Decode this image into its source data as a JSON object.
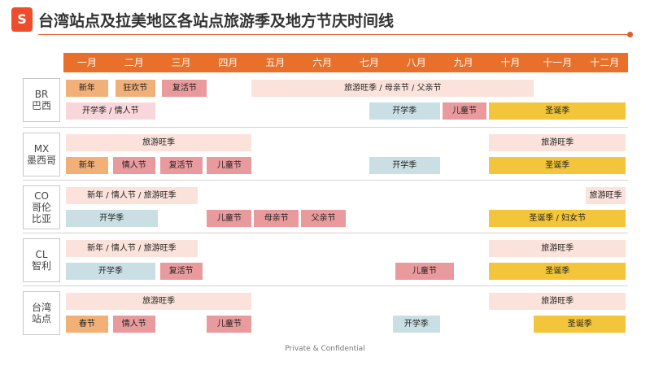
{
  "title": "台湾站点及拉美地区各站点旅游季及地方节庆时间线",
  "logo_glyph": "S",
  "months": [
    "一月",
    "二月",
    "三月",
    "四月",
    "五月",
    "六月",
    "七月",
    "八月",
    "九月",
    "十月",
    "十一月",
    "十二月"
  ],
  "regions": [
    {
      "code": "BR",
      "name_lines": [
        "巴西"
      ],
      "bars": [
        {
          "label": "新年",
          "color": "orange",
          "start": 0.05,
          "end": 0.95,
          "row": 0
        },
        {
          "label": "狂欢节",
          "color": "orange",
          "start": 1.1,
          "end": 1.95,
          "row": 0
        },
        {
          "label": "复活节",
          "color": "red",
          "start": 2.1,
          "end": 3.05,
          "row": 0
        },
        {
          "label": "旅游旺季 / 母亲节 / 父亲节",
          "color": "peach",
          "start": 4.0,
          "end": 10.0,
          "row": 0
        },
        {
          "label": "开学季 / 情人节",
          "color": "pink",
          "start": 0.05,
          "end": 1.95,
          "row": 1
        },
        {
          "label": "开学季",
          "color": "teal",
          "start": 6.5,
          "end": 8.0,
          "row": 1
        },
        {
          "label": "儿童节",
          "color": "red",
          "start": 8.05,
          "end": 9.0,
          "row": 1
        },
        {
          "label": "圣诞季",
          "color": "yellow",
          "start": 9.05,
          "end": 11.95,
          "row": 1
        }
      ]
    },
    {
      "code": "MX",
      "name_lines": [
        "墨西哥"
      ],
      "bars": [
        {
          "label": "旅游旺季",
          "color": "peach",
          "start": 0.05,
          "end": 4.0,
          "row": 0
        },
        {
          "label": "旅游旺季",
          "color": "peach",
          "start": 9.05,
          "end": 11.95,
          "row": 0
        },
        {
          "label": "新年",
          "color": "orange",
          "start": 0.05,
          "end": 0.95,
          "row": 1
        },
        {
          "label": "情人节",
          "color": "red",
          "start": 1.05,
          "end": 1.95,
          "row": 1
        },
        {
          "label": "复活节",
          "color": "red",
          "start": 2.05,
          "end": 2.95,
          "row": 1
        },
        {
          "label": "儿童节",
          "color": "red",
          "start": 3.05,
          "end": 4.0,
          "row": 1
        },
        {
          "label": "开学季",
          "color": "teal",
          "start": 6.5,
          "end": 8.0,
          "row": 1
        },
        {
          "label": "圣诞季",
          "color": "yellow",
          "start": 9.05,
          "end": 11.95,
          "row": 1
        }
      ]
    },
    {
      "code": "CO",
      "name_lines": [
        "哥伦",
        "比亚"
      ],
      "bars": [
        {
          "label": "新年 / 情人节 / 旅游旺季",
          "color": "peach",
          "start": 0.05,
          "end": 2.85,
          "row": 0
        },
        {
          "label": "旅游旺季",
          "color": "peach",
          "start": 11.1,
          "end": 11.95,
          "row": 0
        },
        {
          "label": "开学季",
          "color": "teal",
          "start": 0.05,
          "end": 2.0,
          "row": 1
        },
        {
          "label": "儿童节",
          "color": "red",
          "start": 3.05,
          "end": 4.0,
          "row": 1
        },
        {
          "label": "母亲节",
          "color": "red",
          "start": 4.05,
          "end": 5.0,
          "row": 1
        },
        {
          "label": "父亲节",
          "color": "red",
          "start": 5.05,
          "end": 6.0,
          "row": 1
        },
        {
          "label": "圣诞季 / 妇女节",
          "color": "yellow",
          "start": 9.05,
          "end": 11.95,
          "row": 1
        }
      ]
    },
    {
      "code": "CL",
      "name_lines": [
        "智利"
      ],
      "bars": [
        {
          "label": "新年 / 情人节 / 旅游旺季",
          "color": "peach",
          "start": 0.05,
          "end": 2.85,
          "row": 0
        },
        {
          "label": "旅游旺季",
          "color": "peach",
          "start": 9.05,
          "end": 11.95,
          "row": 0
        },
        {
          "label": "开学季",
          "color": "teal",
          "start": 0.05,
          "end": 1.95,
          "row": 1
        },
        {
          "label": "复活节",
          "color": "red",
          "start": 2.05,
          "end": 2.95,
          "row": 1
        },
        {
          "label": "儿童节",
          "color": "red",
          "start": 7.05,
          "end": 8.3,
          "row": 1
        },
        {
          "label": "圣诞季",
          "color": "yellow",
          "start": 9.05,
          "end": 11.95,
          "row": 1
        }
      ]
    },
    {
      "code": "",
      "name_lines": [
        "台湾",
        "站点"
      ],
      "bars": [
        {
          "label": "旅游旺季",
          "color": "peach",
          "start": 0.05,
          "end": 4.0,
          "row": 0
        },
        {
          "label": "旅游旺季",
          "color": "peach",
          "start": 9.05,
          "end": 11.95,
          "row": 0
        },
        {
          "label": "春节",
          "color": "orange",
          "start": 0.05,
          "end": 0.95,
          "row": 1
        },
        {
          "label": "情人节",
          "color": "red",
          "start": 1.05,
          "end": 1.95,
          "row": 1
        },
        {
          "label": "儿童节",
          "color": "red",
          "start": 3.05,
          "end": 4.0,
          "row": 1
        },
        {
          "label": "开学季",
          "color": "teal",
          "start": 7.0,
          "end": 8.0,
          "row": 1
        },
        {
          "label": "圣诞季",
          "color": "yellow",
          "start": 10.0,
          "end": 11.95,
          "row": 1
        }
      ]
    }
  ],
  "colors": {
    "accent": "#e8702a",
    "peach": "#fbe3db",
    "orange": "#f2b079",
    "red": "#e99a9c",
    "teal": "#c9dfe3",
    "yellow": "#f2c53a",
    "pink": "#f9d6d9"
  },
  "footer": "Private & Confidential"
}
